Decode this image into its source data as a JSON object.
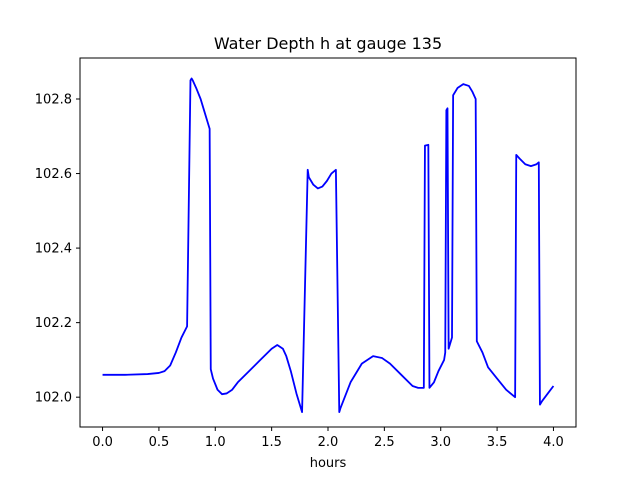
{
  "chart_data": {
    "type": "line",
    "title": "Water Depth h at gauge 135",
    "xlabel": "hours",
    "ylabel": "",
    "xlim": [
      -0.2,
      4.2
    ],
    "ylim": [
      101.92,
      102.91
    ],
    "xticks": [
      0.0,
      0.5,
      1.0,
      1.5,
      2.0,
      2.5,
      3.0,
      3.5,
      4.0
    ],
    "xtick_labels": [
      "0.0",
      "0.5",
      "1.0",
      "1.5",
      "2.0",
      "2.5",
      "3.0",
      "3.5",
      "4.0"
    ],
    "yticks": [
      102.0,
      102.2,
      102.4,
      102.6,
      102.8
    ],
    "ytick_labels": [
      "102.0",
      "102.2",
      "102.4",
      "102.6",
      "102.8"
    ],
    "grid": false,
    "line_color": "#0000ff",
    "series": [
      {
        "x": [
          0.0,
          0.2,
          0.4,
          0.5,
          0.55,
          0.6,
          0.65,
          0.7,
          0.75,
          0.78,
          0.79,
          0.8,
          0.83,
          0.87,
          0.9,
          0.93,
          0.95,
          0.96,
          0.98,
          1.02,
          1.06,
          1.1,
          1.15,
          1.2,
          1.3,
          1.4,
          1.5,
          1.55,
          1.6,
          1.63,
          1.67,
          1.72,
          1.77,
          1.82,
          1.83,
          1.87,
          1.91,
          1.95,
          1.99,
          2.03,
          2.07,
          2.1,
          2.11,
          2.2,
          2.3,
          2.4,
          2.48,
          2.55,
          2.65,
          2.75,
          2.8,
          2.85,
          2.86,
          2.89,
          2.9,
          2.94,
          2.98,
          3.03,
          3.04,
          3.05,
          3.06,
          3.07,
          3.1,
          3.11,
          3.15,
          3.2,
          3.25,
          3.28,
          3.31,
          3.32,
          3.37,
          3.42,
          3.5,
          3.58,
          3.66,
          3.67,
          3.7,
          3.75,
          3.8,
          3.85,
          3.87,
          3.88,
          3.9,
          3.95,
          4.0
        ],
        "values": [
          102.06,
          102.06,
          102.062,
          102.065,
          102.07,
          102.085,
          102.12,
          102.16,
          102.19,
          102.85,
          102.855,
          102.85,
          102.83,
          102.8,
          102.77,
          102.74,
          102.72,
          102.075,
          102.05,
          102.02,
          102.008,
          102.01,
          102.02,
          102.04,
          102.07,
          102.1,
          102.13,
          102.14,
          102.13,
          102.11,
          102.07,
          102.01,
          101.96,
          102.61,
          102.59,
          102.57,
          102.56,
          102.565,
          102.58,
          102.6,
          102.61,
          101.96,
          101.97,
          102.04,
          102.09,
          102.11,
          102.105,
          102.09,
          102.06,
          102.03,
          102.025,
          102.025,
          102.675,
          102.677,
          102.025,
          102.04,
          102.07,
          102.1,
          102.12,
          102.77,
          102.775,
          102.13,
          102.16,
          102.81,
          102.83,
          102.84,
          102.835,
          102.82,
          102.8,
          102.15,
          102.12,
          102.08,
          102.05,
          102.02,
          102.0,
          102.65,
          102.64,
          102.625,
          102.62,
          102.625,
          102.63,
          101.98,
          101.99,
          102.01,
          102.03
        ]
      }
    ]
  }
}
